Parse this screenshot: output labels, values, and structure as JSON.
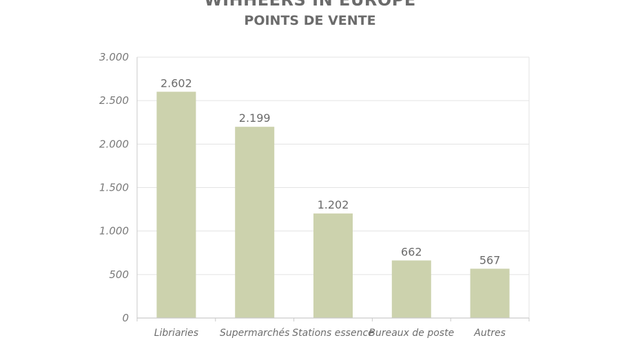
{
  "header": {
    "title_partial": "WIHHEERS IN EUROPE",
    "subtitle": "POINTS DE VENTE"
  },
  "chart_data": {
    "type": "bar",
    "title": "POINTS DE VENTE",
    "categories": [
      "Libriaries",
      "Supermarchés",
      "Stations essence",
      "Bureaux de poste",
      "Autres"
    ],
    "values": [
      2602,
      2199,
      1202,
      662,
      567
    ],
    "value_labels": [
      "2.602",
      "2.199",
      "1.202",
      "662",
      "567"
    ],
    "ylim": [
      0,
      3000
    ],
    "yticks": [
      0,
      500,
      1000,
      1500,
      2000,
      2500,
      3000
    ],
    "ytick_labels": [
      "0",
      "500",
      "1.000",
      "1.500",
      "2.000",
      "2.500",
      "3.000"
    ],
    "grid": true,
    "bar_color": "#ccd2ad",
    "grid_color": "#e3e3e3",
    "axis_color": "#c9c9c9"
  }
}
